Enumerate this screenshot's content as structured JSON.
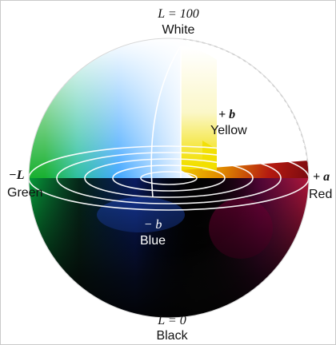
{
  "labels": {
    "top_axis": "L = 100",
    "top_name": "White",
    "bottom_axis": "L = 0",
    "bottom_name": "Black",
    "left_axis": "−L",
    "left_name": "Green",
    "right_axis": "+ a",
    "right_name": "Red",
    "pos_b_axis": "+ b",
    "pos_b_name": "Yellow",
    "neg_b_axis": "− b",
    "neg_b_name": "Blue"
  },
  "colors": {
    "white": "#ffffff",
    "black": "#000000",
    "green": "#1db43a",
    "red": "#c8141e",
    "yellow": "#f2e000",
    "blue": "#3c8cff",
    "magenta": "#b4006e"
  }
}
